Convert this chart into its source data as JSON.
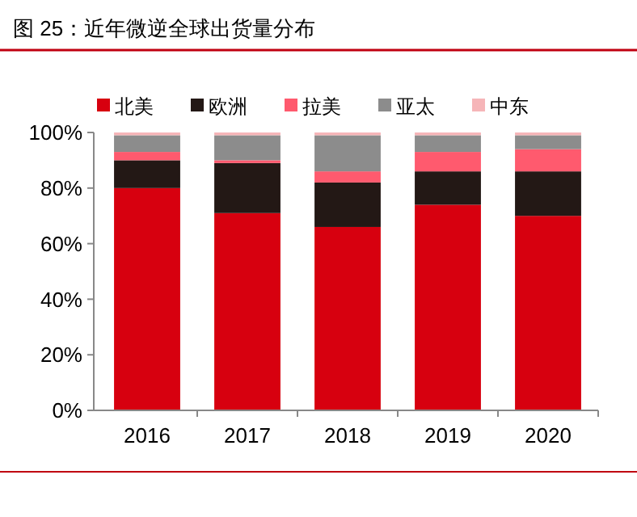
{
  "chart_data": {
    "type": "bar",
    "title": "图 25：近年微逆全球出货量分布",
    "categories": [
      "2016",
      "2017",
      "2018",
      "2019",
      "2020"
    ],
    "stacked": true,
    "legend": "top",
    "series": [
      {
        "name": "北美",
        "color": "#d7000f",
        "values": [
          80,
          71,
          66,
          74,
          70
        ]
      },
      {
        "name": "欧洲",
        "color": "#231815",
        "values": [
          10,
          18,
          16,
          12,
          16
        ]
      },
      {
        "name": "拉美",
        "color": "#ff5a6e",
        "values": [
          3,
          1,
          4,
          7,
          8
        ]
      },
      {
        "name": "亚太",
        "color": "#8c8c8c",
        "values": [
          6,
          9,
          13,
          6,
          5
        ]
      },
      {
        "name": "中东",
        "color": "#f6b5b8",
        "values": [
          1,
          1,
          1,
          1,
          1
        ]
      }
    ],
    "ylim": [
      0,
      100
    ],
    "yticks": [
      {
        "value": 0,
        "label": "0%"
      },
      {
        "value": 20,
        "label": "20%"
      },
      {
        "value": 40,
        "label": "40%"
      },
      {
        "value": 60,
        "label": "60%"
      },
      {
        "value": 80,
        "label": "80%"
      },
      {
        "value": 100,
        "label": "100%"
      }
    ]
  }
}
